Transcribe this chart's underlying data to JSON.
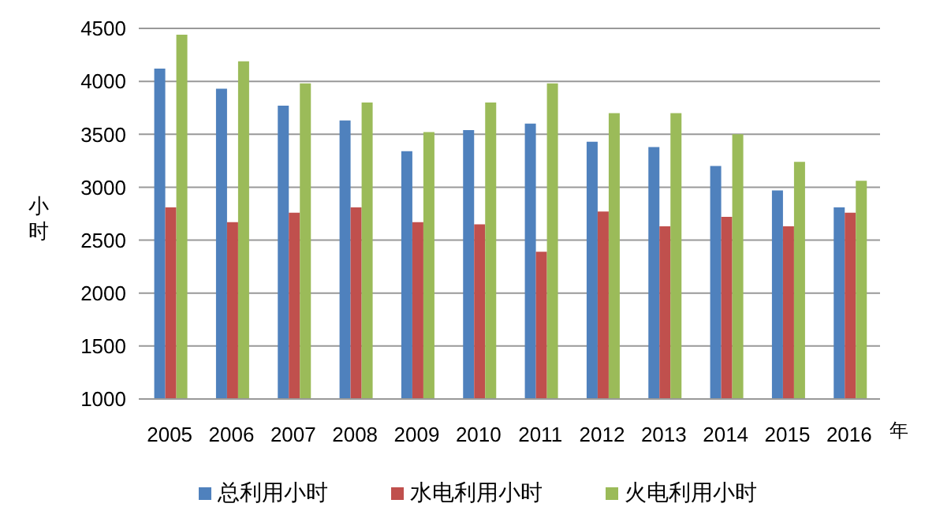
{
  "chart_data": {
    "type": "bar",
    "categories": [
      "2005",
      "2006",
      "2007",
      "2008",
      "2009",
      "2010",
      "2011",
      "2012",
      "2013",
      "2014",
      "2015",
      "2016"
    ],
    "series": [
      {
        "name": "总利用小时",
        "color": "#4f81bd",
        "values": [
          4120,
          3930,
          3770,
          3630,
          3340,
          3540,
          3600,
          3430,
          3380,
          3200,
          2970,
          2810
        ]
      },
      {
        "name": "水电利用小时",
        "color": "#c0504d",
        "values": [
          2810,
          2670,
          2760,
          2810,
          2670,
          2650,
          2390,
          2770,
          2630,
          2720,
          2630,
          2760
        ]
      },
      {
        "name": "火电利用小时",
        "color": "#9bbb59",
        "values": [
          4440,
          4190,
          3980,
          3800,
          3520,
          3800,
          3980,
          3700,
          3700,
          3500,
          3240,
          3060
        ]
      }
    ],
    "xlabel": "年",
    "ylabel": "小时",
    "ylim": [
      1000,
      4500
    ],
    "yticks": [
      1000,
      1500,
      2000,
      2500,
      3000,
      3500,
      4000,
      4500
    ],
    "grid": "y",
    "legend": "bottom"
  }
}
